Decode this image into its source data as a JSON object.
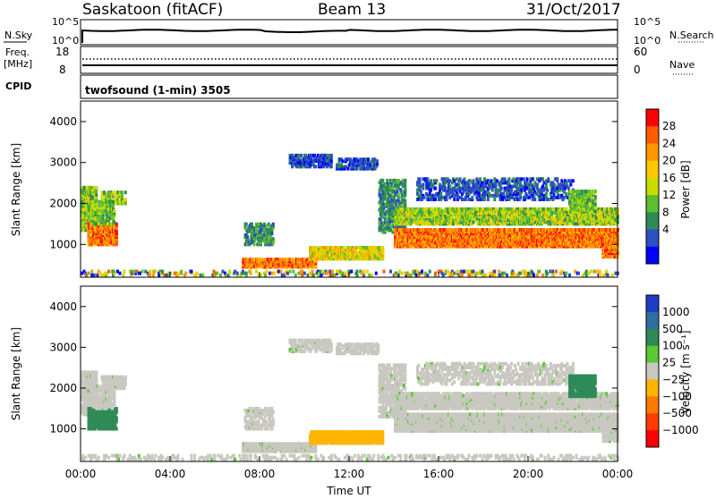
{
  "header": {
    "station": "Saskatoon (fitACF)",
    "beam": "Beam 13",
    "date": "31/Oct/2017"
  },
  "top_panel": {
    "left_label": "N.Sky",
    "right_label": "N.Search",
    "left_ticks": [
      "10^5",
      "10^0"
    ],
    "right_ticks": [
      "10^5",
      "10^0"
    ]
  },
  "freq_panel": {
    "left_label_1": "Freq.",
    "left_label_2": "[MHz]",
    "left_ticks": [
      "18",
      "8"
    ],
    "right_label": "Nave",
    "right_ticks": [
      "60",
      "0"
    ]
  },
  "cpid": {
    "label": "CPID",
    "value": "twofsound (1-min) 3505"
  },
  "chart_data": [
    {
      "type": "heatmap",
      "title": "",
      "ylabel": "Slant Range [km]",
      "ylim": [
        200,
        4500
      ],
      "yticks": [
        "4000",
        "3000",
        "2000",
        "1000"
      ],
      "xlim": [
        0,
        24
      ],
      "colorbar": {
        "label": "Power [dB]",
        "ticks": [
          "28",
          "24",
          "20",
          "16",
          "12",
          "8",
          "4"
        ],
        "colors": [
          "#ff0000",
          "#ff5a00",
          "#ff9600",
          "#ffc800",
          "#c8dc00",
          "#5abe32",
          "#2e8b57",
          "#2c4fc4",
          "#0000ff"
        ]
      }
    },
    {
      "type": "heatmap",
      "title": "",
      "ylabel": "Slant Range [km]",
      "ylim": [
        200,
        4500
      ],
      "yticks": [
        "4000",
        "3000",
        "2000",
        "1000"
      ],
      "xlabel": "Time UT",
      "xticks": [
        "00:00",
        "04:00",
        "08:00",
        "12:00",
        "16:00",
        "20:00",
        "00:00"
      ],
      "xlim": [
        0,
        24
      ],
      "colorbar": {
        "label": "Velocity [m s⁻¹]",
        "ticks": [
          "1000",
          "500",
          "100",
          "25",
          "−25",
          "−100",
          "−500",
          "−1000"
        ],
        "colors": [
          "#1e3cc8",
          "#2e6e9e",
          "#2e8b57",
          "#5ac832",
          "#c8c8c0",
          "#ffb400",
          "#ff7800",
          "#ff3c00",
          "#ff0000"
        ]
      }
    }
  ]
}
